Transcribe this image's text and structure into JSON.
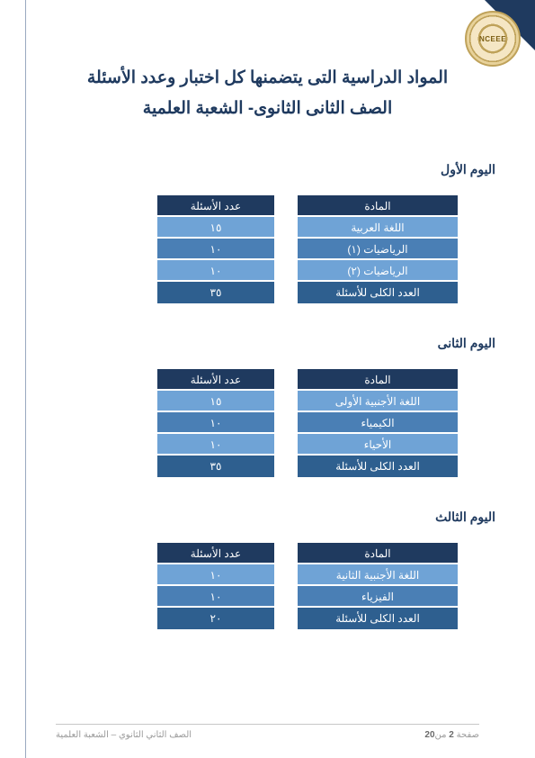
{
  "logo_text": "NCEEE",
  "title_line1": "المواد الدراسية التى يتضمنها كل اختبار وعدد الأسئلة",
  "title_line2": "الصف الثانى الثانوى- الشعبة العلمية",
  "colors": {
    "header": "#1f3a5f",
    "row_a": "#6fa3d6",
    "row_b": "#4a7fb5",
    "total": "#2e5f8f",
    "title_text": "#1f3a5f"
  },
  "column_headers": {
    "subject": "المادة",
    "count": "عدد الأسئلة"
  },
  "days": [
    {
      "label": "اليوم الأول",
      "rows": [
        {
          "subject": "اللغة العربية",
          "count": "١٥",
          "shade": "a"
        },
        {
          "subject": "الرياضيات (١)",
          "count": "١٠",
          "shade": "b"
        },
        {
          "subject": "الرياضيات (٢)",
          "count": "١٠",
          "shade": "a"
        }
      ],
      "total": {
        "subject": "العدد الكلى للأسئلة",
        "count": "٣٥"
      }
    },
    {
      "label": "اليوم الثانى",
      "rows": [
        {
          "subject": "اللغة الأجنبية الأولى",
          "count": "١٥",
          "shade": "a"
        },
        {
          "subject": "الكيمياء",
          "count": "١٠",
          "shade": "b"
        },
        {
          "subject": "الأحياء",
          "count": "١٠",
          "shade": "a"
        }
      ],
      "total": {
        "subject": "العدد الكلى للأسئلة",
        "count": "٣٥"
      }
    },
    {
      "label": "اليوم الثالث",
      "rows": [
        {
          "subject": "اللغة الأجنبية الثانية",
          "count": "١٠",
          "shade": "a"
        },
        {
          "subject": "الفيزياء",
          "count": "١٠",
          "shade": "b"
        }
      ],
      "total": {
        "subject": "العدد الكلى للأسئلة",
        "count": "٢٠"
      }
    }
  ],
  "footer": {
    "page_prefix": "صفحة ",
    "page_num": "2",
    "page_mid": " من",
    "page_total": "20",
    "doc": "الصف الثاني الثانوي – الشعبة العلمية"
  }
}
